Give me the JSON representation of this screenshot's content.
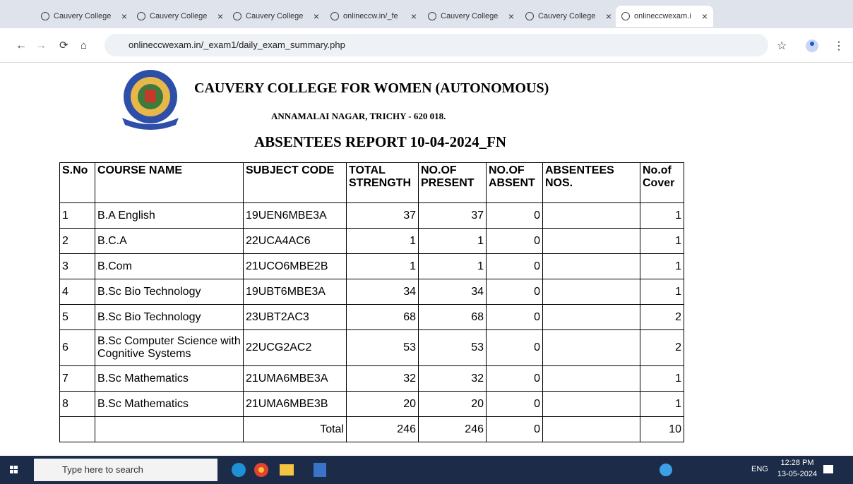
{
  "browser": {
    "tabs": [
      "Cauvery College",
      "Cauvery College",
      "Cauvery College",
      "onlineccw.in/_fe",
      "Cauvery College",
      "Cauvery College",
      "onlineccwexam.i"
    ],
    "url": "onlineccwexam.in/_exam1/daily_exam_summary.php"
  },
  "header": {
    "college": "CAUVERY COLLEGE FOR WOMEN (AUTONOMOUS)",
    "address": "ANNAMALAI NAGAR, TRICHY - 620 018.",
    "report_title": "ABSENTEES REPORT 10-04-2024_FN"
  },
  "table": {
    "columns": [
      "S.No",
      "COURSE NAME",
      "SUBJECT CODE",
      "TOTAL STRENGTH",
      "NO.OF PRESENT",
      "NO.OF ABSENT",
      "ABSENTEES NOS.",
      "No.of Cover"
    ],
    "rows": [
      {
        "sno": 1,
        "course": "B.A English",
        "code": "19UEN6MBE3A",
        "total": 37,
        "present": 37,
        "absent": 0,
        "cover": 1
      },
      {
        "sno": 2,
        "course": "B.C.A",
        "code": "22UCA4AC6",
        "total": 1,
        "present": 1,
        "absent": 0,
        "cover": 1
      },
      {
        "sno": 3,
        "course": "B.Com",
        "code": "21UCO6MBE2B",
        "total": 1,
        "present": 1,
        "absent": 0,
        "cover": 1
      },
      {
        "sno": 4,
        "course": "B.Sc Bio Technology",
        "code": "19UBT6MBE3A",
        "total": 34,
        "present": 34,
        "absent": 0,
        "cover": 1
      },
      {
        "sno": 5,
        "course": "B.Sc Bio Technology",
        "code": "23UBT2AC3",
        "total": 68,
        "present": 68,
        "absent": 0,
        "cover": 2
      },
      {
        "sno": 6,
        "course": "B.Sc Computer Science with Cognitive Systems",
        "code": "22UCG2AC2",
        "total": 53,
        "present": 53,
        "absent": 0,
        "cover": 2
      },
      {
        "sno": 7,
        "course": "B.Sc Mathematics",
        "code": "21UMA6MBE3A",
        "total": 32,
        "present": 32,
        "absent": 0,
        "cover": 1
      },
      {
        "sno": 8,
        "course": "B.Sc Mathematics",
        "code": "21UMA6MBE3B",
        "total": 20,
        "present": 20,
        "absent": 0,
        "cover": 1
      }
    ],
    "total": {
      "label": "Total",
      "total": 246,
      "present": 246,
      "absent": 0,
      "cover": 10
    }
  },
  "taskbar": {
    "search": "Type here to search",
    "language": "ENG",
    "time": "12:28 PM",
    "date": "13-05-2024"
  }
}
